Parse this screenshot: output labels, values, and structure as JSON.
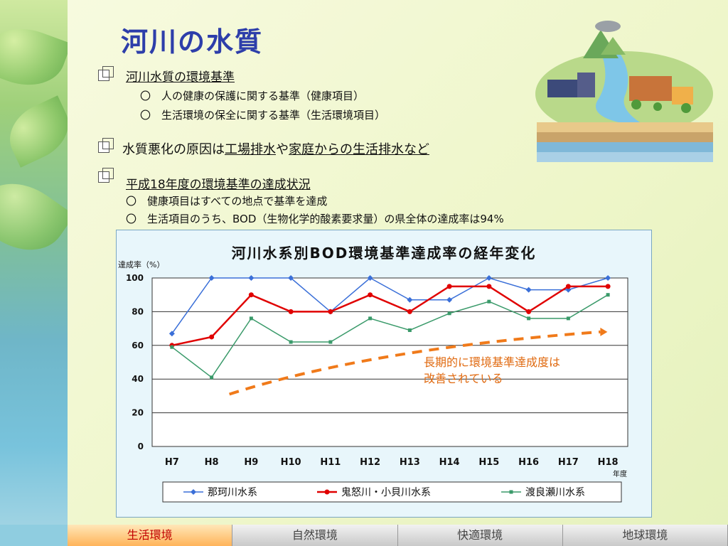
{
  "title": "河川の水質",
  "sections": {
    "s1": {
      "heading": "河川水質の環境基準",
      "items": [
        "〇　人の健康の保護に関する基準（健康項目）",
        "〇　生活環境の保全に関する基準（生活環境項目）"
      ]
    },
    "s2": {
      "prefix": "水質悪化の原因は",
      "u1": "工場排水",
      "mid": "や",
      "u2": "家庭からの生活排水など"
    },
    "s3": {
      "heading": "平成18年度の環境基準の達成状況",
      "items": [
        "〇　健康項目はすべての地点で基準を達成",
        "〇　生活項目のうち、BOD（生物化学的酸素要求量）の県全体の達成率は94%"
      ]
    }
  },
  "chart_data": {
    "type": "line",
    "title": "河川水系別BOD環境基準達成率の経年変化",
    "ylabel": "達成率（%）",
    "xlabel": "年度",
    "ylim": [
      0,
      100
    ],
    "yticks": [
      0,
      20,
      40,
      60,
      80,
      100
    ],
    "categories": [
      "H7",
      "H8",
      "H9",
      "H10",
      "H11",
      "H12",
      "H13",
      "H14",
      "H15",
      "H16",
      "H17",
      "H18"
    ],
    "series": [
      {
        "name": "那珂川水系",
        "color": "#3a6fd8",
        "marker": "diamond",
        "values": [
          67,
          100,
          100,
          100,
          80,
          100,
          87,
          87,
          100,
          93,
          93,
          100
        ]
      },
      {
        "name": "鬼怒川・小貝川水系",
        "color": "#e00000",
        "marker": "circle",
        "values": [
          60,
          65,
          90,
          80,
          80,
          90,
          80,
          95,
          95,
          80,
          95,
          95
        ]
      },
      {
        "name": "渡良瀬川水系",
        "color": "#3a9a6a",
        "marker": "square",
        "values": [
          59,
          41,
          76,
          62,
          62,
          76,
          69,
          79,
          86,
          76,
          76,
          90
        ]
      }
    ],
    "annotation": "長期的に環境基準達成度は改善されている",
    "grid": true,
    "legend": "bottom"
  },
  "note": {
    "line1": "長期的に環境基準達成度は",
    "line2": "改善されている"
  },
  "tabs": [
    {
      "label": "生活環境",
      "active": true
    },
    {
      "label": "自然環境",
      "active": false
    },
    {
      "label": "快適環境",
      "active": false
    },
    {
      "label": "地球環境",
      "active": false
    }
  ]
}
